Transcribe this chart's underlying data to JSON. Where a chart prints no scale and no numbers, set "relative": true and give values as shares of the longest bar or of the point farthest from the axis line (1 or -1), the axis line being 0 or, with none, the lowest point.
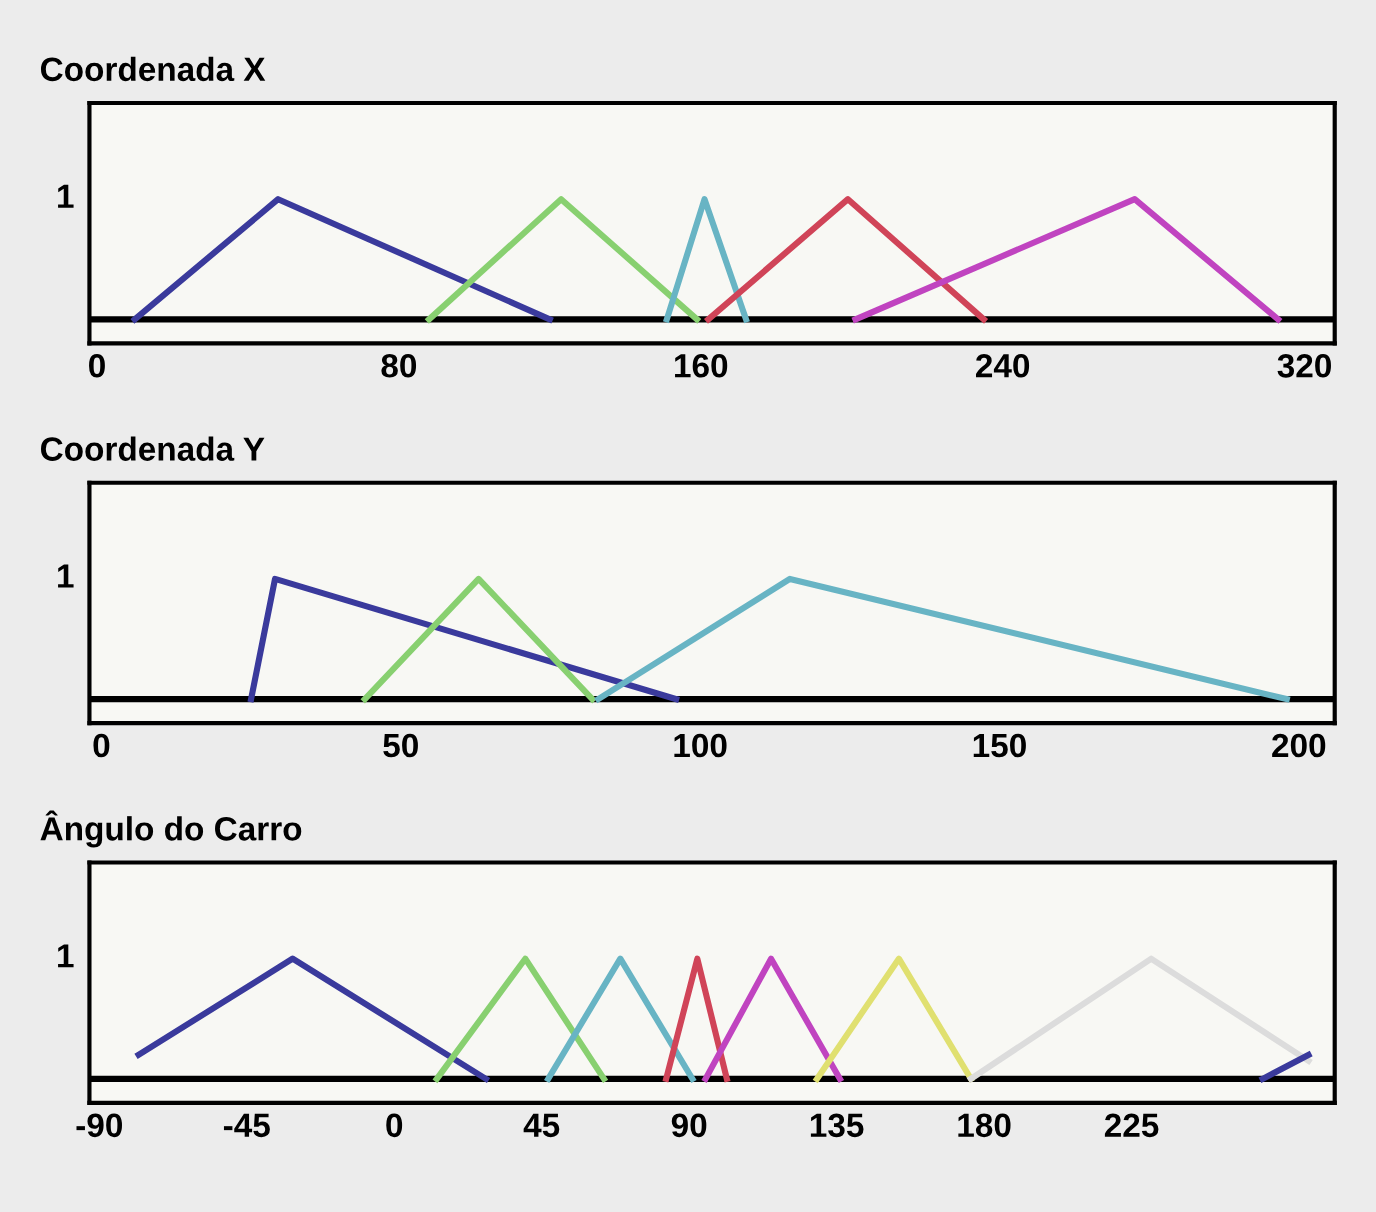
{
  "chart_data": [
    {
      "type": "line",
      "title": "Coordenada X",
      "relative": true,
      "annotations": [
        "1"
      ],
      "xlim": [
        -2,
        328
      ],
      "xticks": [
        0,
        80,
        160,
        240,
        320
      ],
      "series": [
        {
          "color": "#3a3a9c",
          "x": [
            10,
            48,
            120
          ],
          "values": [
            0,
            1,
            0
          ]
        },
        {
          "color": "#88d070",
          "x": [
            88,
            123,
            159
          ],
          "values": [
            0,
            1,
            0
          ]
        },
        {
          "color": "#68b4c4",
          "x": [
            151,
            161,
            172
          ],
          "values": [
            0,
            1,
            0
          ]
        },
        {
          "color": "#d04458",
          "x": [
            162,
            199,
            235
          ],
          "values": [
            0,
            1,
            0
          ]
        },
        {
          "color": "#c044c0",
          "x": [
            201,
            275,
            313
          ],
          "values": [
            0,
            1,
            0
          ]
        }
      ]
    },
    {
      "type": "line",
      "title": "Coordenada Y",
      "relative": true,
      "annotations": [
        "1"
      ],
      "xlim": [
        -2,
        206
      ],
      "xticks": [
        0,
        50,
        100,
        150,
        200
      ],
      "series": [
        {
          "color": "#3a3a9c",
          "x": [
            25,
            29,
            96
          ],
          "values": [
            0,
            1,
            0
          ]
        },
        {
          "color": "#88d070",
          "x": [
            44,
            63,
            82
          ],
          "values": [
            0,
            1,
            0
          ]
        },
        {
          "color": "#68b4c4",
          "x": [
            83,
            115,
            198
          ],
          "values": [
            0,
            1,
            0
          ]
        }
      ]
    },
    {
      "type": "line",
      "title": "Ângulo do Carro",
      "relative": true,
      "annotations": [
        "1"
      ],
      "xlim": [
        -93,
        287
      ],
      "xticks": [
        -90,
        -45,
        0,
        45,
        90,
        135,
        180,
        225
      ],
      "series": [
        {
          "color": "#3a3a9c",
          "x": [
            -78,
            -31,
            28
          ],
          "values": [
            0.2,
            1,
            0
          ]
        },
        {
          "color": "#88d070",
          "x": [
            13,
            40,
            64
          ],
          "values": [
            0,
            1,
            0
          ]
        },
        {
          "color": "#68b4c4",
          "x": [
            47,
            69,
            91
          ],
          "values": [
            0,
            1,
            0
          ]
        },
        {
          "color": "#d04458",
          "x": [
            83,
            92.5,
            101.5
          ],
          "values": [
            0,
            1,
            0
          ]
        },
        {
          "color": "#c044c0",
          "x": [
            95,
            115,
            136
          ],
          "values": [
            0,
            1,
            0
          ]
        },
        {
          "color": "#e0e070",
          "x": [
            129,
            154,
            176
          ],
          "values": [
            0,
            1,
            0
          ]
        },
        {
          "color": "#dcdcdc",
          "x": [
            176,
            231,
            279
          ],
          "values": [
            0,
            1,
            0.15
          ]
        },
        {
          "color": "#3a3a9c",
          "x": [
            265,
            279
          ],
          "values": [
            0,
            0.2
          ]
        }
      ]
    }
  ]
}
